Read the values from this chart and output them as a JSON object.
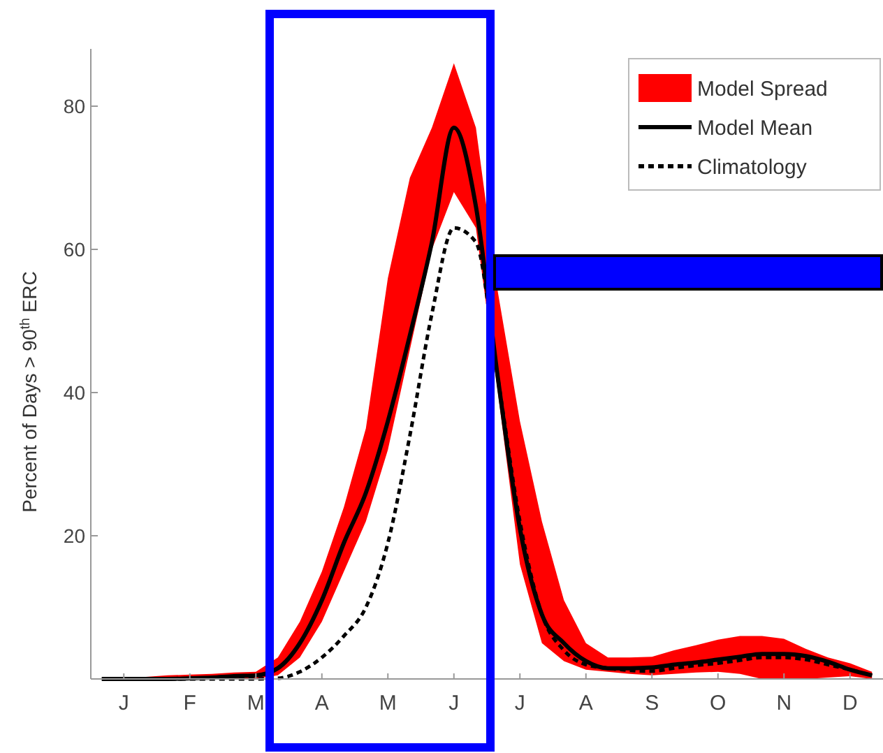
{
  "chart_data": {
    "type": "line",
    "ylabel": "Percent of Days > 90$^{th}$ ERC",
    "categories": [
      null,
      "J",
      null,
      null,
      "F",
      null,
      null,
      "M",
      null,
      null,
      "A",
      null,
      null,
      "M",
      null,
      null,
      "J",
      null,
      null,
      "J",
      null,
      null,
      "A",
      null,
      null,
      "S",
      null,
      null,
      "O",
      null,
      null,
      "N",
      null,
      null,
      "D",
      null
    ],
    "ylim": [
      0,
      88
    ],
    "yticks": [
      20,
      40,
      60,
      80
    ],
    "annotations": [
      "Model Spread"
    ],
    "series": [
      {
        "name": "Model Mean",
        "color": "#000000",
        "line_style": "solid",
        "values": [
          0,
          0,
          0,
          0,
          0.1,
          0.2,
          0.4,
          0.5,
          1.5,
          5,
          11,
          19,
          26,
          36,
          48,
          61,
          77,
          66,
          42,
          21,
          9,
          5,
          2.5,
          1.5,
          1.5,
          1.6,
          2,
          2.3,
          2.7,
          3.1,
          3.5,
          3.5,
          3.2,
          2.4,
          1.3,
          0.5
        ],
        "lower": [
          0,
          0,
          0,
          0,
          0,
          0,
          0,
          0,
          0.5,
          3,
          8,
          15,
          22,
          32,
          46,
          60,
          68,
          63,
          40,
          16,
          5,
          2.5,
          1.3,
          1,
          0.7,
          0.5,
          0.7,
          0.9,
          1,
          0.7,
          0,
          0,
          0,
          0.2,
          0.4,
          0
        ],
        "upper": [
          0,
          0.2,
          0.3,
          0.5,
          0.6,
          0.7,
          0.9,
          1,
          3,
          8,
          15,
          24,
          35,
          56,
          70,
          77,
          86,
          77,
          54,
          36,
          22,
          11,
          5,
          3,
          3,
          3.1,
          4,
          4.7,
          5.5,
          6,
          6,
          5.6,
          4.2,
          3,
          2.2,
          1
        ]
      },
      {
        "name": "Climatology",
        "color": "#000000",
        "line_style": "dashed",
        "values": [
          0,
          0,
          0,
          0,
          0,
          0,
          0,
          0,
          0.1,
          1,
          3,
          6,
          10,
          19,
          34,
          51,
          63,
          61,
          42,
          22,
          9,
          4,
          2,
          1.5,
          1.2,
          1.1,
          1.5,
          1.9,
          2.2,
          2.6,
          3,
          3,
          2.7,
          2,
          1.3,
          0.5
        ]
      }
    ],
    "legend": "top right",
    "grid": false,
    "marker": "none"
  }
}
